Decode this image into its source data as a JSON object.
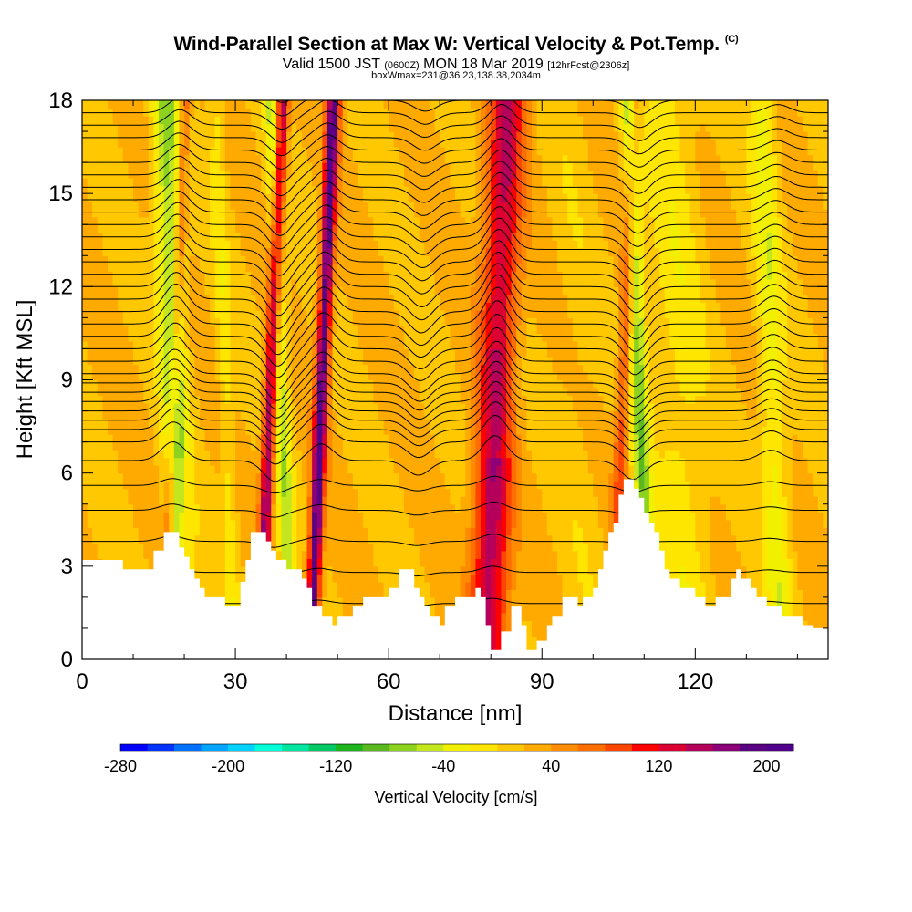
{
  "chart_data": {
    "type": "heatmap",
    "title": "Wind-Parallel Section at Max W: Vertical Velocity & Pot.Temp.",
    "title_tag": "(C)",
    "subtitle": {
      "valid": "Valid 1500 JST",
      "utc": "(0600Z)",
      "date": "MON 18 Mar 2019",
      "forecast": "[12hrFcst@2306z]"
    },
    "box_note": "boxWmax=231@36.23,138.38,2034m",
    "xlabel": "Distance [nm]",
    "ylabel": "Height [Kft MSL]",
    "xlim": [
      0,
      146
    ],
    "ylim": [
      0,
      18
    ],
    "xticks": [
      "0",
      "30",
      "60",
      "90",
      "120"
    ],
    "yticks": [
      "0",
      "3",
      "6",
      "9",
      "12",
      "15",
      "18"
    ],
    "colorbar": {
      "label": "Vertical Velocity [cm/s]",
      "tick_labels": [
        "-280",
        "-200",
        "-120",
        "-40",
        "40",
        "120",
        "200"
      ],
      "colors": [
        "#0000ff",
        "#0033ff",
        "#0070ff",
        "#00a5ff",
        "#00d2ff",
        "#00ffd7",
        "#00e5a0",
        "#00c864",
        "#1db41e",
        "#5ab91e",
        "#8cd21e",
        "#c3e61e",
        "#f0f000",
        "#ffe600",
        "#ffc800",
        "#ffaa00",
        "#ff8c00",
        "#ff6e00",
        "#ff4600",
        "#ff0000",
        "#dc0032",
        "#b4005a",
        "#8c0078",
        "#5a0082",
        "#50008c"
      ]
    },
    "velocity_columns": [
      {
        "x": 18,
        "w": 2.5,
        "v": -90
      },
      {
        "x": 37,
        "w": 1.2,
        "v": 150
      },
      {
        "x": 39,
        "w": 1.5,
        "v": -70
      },
      {
        "x": 47,
        "w": 1.3,
        "v": 180
      },
      {
        "x": 81,
        "w": 3.5,
        "v": 120
      },
      {
        "x": 109,
        "w": 1.6,
        "v": -90
      },
      {
        "x": 106,
        "w": 1.3,
        "v": 70
      },
      {
        "x": 117,
        "w": 5.0,
        "v": -30
      },
      {
        "x": 135,
        "w": 2.5,
        "v": -50
      },
      {
        "x": 28,
        "w": 1.5,
        "v": -30
      },
      {
        "x": 18,
        "w": 1.0,
        "v": 60
      },
      {
        "x": 97,
        "w": 4,
        "v": -10
      }
    ],
    "terrain_kft": [
      [
        0,
        3.2
      ],
      [
        8,
        3.2
      ],
      [
        8,
        2.9
      ],
      [
        14,
        2.9
      ],
      [
        14,
        3.5
      ],
      [
        16,
        3.5
      ],
      [
        16,
        4.1
      ],
      [
        19,
        4.1
      ],
      [
        19,
        3.6
      ],
      [
        20,
        3.6
      ],
      [
        20,
        3.3
      ],
      [
        21,
        3.3
      ],
      [
        21,
        2.9
      ],
      [
        22,
        2.9
      ],
      [
        22,
        2.6
      ],
      [
        23,
        2.6
      ],
      [
        23,
        2.3
      ],
      [
        24,
        2.3
      ],
      [
        24,
        2.0
      ],
      [
        28,
        2.0
      ],
      [
        28,
        1.7
      ],
      [
        31,
        1.7
      ],
      [
        31,
        2.5
      ],
      [
        32,
        2.5
      ],
      [
        32,
        3.2
      ],
      [
        33,
        3.2
      ],
      [
        33,
        4.1
      ],
      [
        36,
        4.1
      ],
      [
        36,
        3.8
      ],
      [
        37,
        3.8
      ],
      [
        37,
        3.5
      ],
      [
        38,
        3.5
      ],
      [
        38,
        3.2
      ],
      [
        40,
        3.2
      ],
      [
        40,
        2.9
      ],
      [
        43,
        2.9
      ],
      [
        43,
        2.6
      ],
      [
        44,
        2.6
      ],
      [
        44,
        2.3
      ],
      [
        45,
        2.3
      ],
      [
        45,
        1.7
      ],
      [
        47,
        1.7
      ],
      [
        47,
        1.4
      ],
      [
        49,
        1.4
      ],
      [
        49,
        1.1
      ],
      [
        50,
        1.1
      ],
      [
        50,
        1.4
      ],
      [
        53,
        1.4
      ],
      [
        53,
        1.7
      ],
      [
        55,
        1.7
      ],
      [
        55,
        2.0
      ],
      [
        60,
        2.0
      ],
      [
        60,
        2.3
      ],
      [
        62,
        2.3
      ],
      [
        62,
        2.9
      ],
      [
        65,
        2.9
      ],
      [
        65,
        2.3
      ],
      [
        66,
        2.3
      ],
      [
        66,
        2.0
      ],
      [
        67,
        2.0
      ],
      [
        67,
        1.7
      ],
      [
        68,
        1.7
      ],
      [
        68,
        1.4
      ],
      [
        70,
        1.4
      ],
      [
        70,
        1.1
      ],
      [
        71,
        1.1
      ],
      [
        71,
        1.7
      ],
      [
        73,
        1.7
      ],
      [
        73,
        2.0
      ],
      [
        77,
        2.0
      ],
      [
        77,
        2.3
      ],
      [
        78,
        2.3
      ],
      [
        78,
        2.0
      ],
      [
        79,
        2.0
      ],
      [
        79,
        1.1
      ],
      [
        80,
        1.1
      ],
      [
        80,
        0.3
      ],
      [
        82,
        0.3
      ],
      [
        82,
        0.9
      ],
      [
        84,
        0.9
      ],
      [
        84,
        1.7
      ],
      [
        86,
        1.7
      ],
      [
        86,
        1.1
      ],
      [
        87,
        1.1
      ],
      [
        87,
        0.3
      ],
      [
        89,
        0.3
      ],
      [
        89,
        0.6
      ],
      [
        91,
        0.6
      ],
      [
        91,
        1.1
      ],
      [
        92,
        1.1
      ],
      [
        92,
        1.4
      ],
      [
        94,
        1.4
      ],
      [
        94,
        2.0
      ],
      [
        97,
        2.0
      ],
      [
        97,
        1.7
      ],
      [
        98,
        1.7
      ],
      [
        98,
        2.0
      ],
      [
        100,
        2.0
      ],
      [
        100,
        2.3
      ],
      [
        101,
        2.3
      ],
      [
        101,
        2.9
      ],
      [
        102,
        2.9
      ],
      [
        102,
        3.5
      ],
      [
        103,
        3.5
      ],
      [
        103,
        4.1
      ],
      [
        104,
        4.1
      ],
      [
        104,
        4.4
      ],
      [
        105,
        4.4
      ],
      [
        105,
        5.3
      ],
      [
        106,
        5.3
      ],
      [
        106,
        5.8
      ],
      [
        108,
        5.8
      ],
      [
        108,
        5.5
      ],
      [
        109,
        5.5
      ],
      [
        109,
        5.2
      ],
      [
        110,
        5.2
      ],
      [
        110,
        4.7
      ],
      [
        111,
        4.7
      ],
      [
        111,
        4.4
      ],
      [
        112,
        4.4
      ],
      [
        112,
        4.1
      ],
      [
        113,
        4.1
      ],
      [
        113,
        3.5
      ],
      [
        114,
        3.5
      ],
      [
        114,
        2.9
      ],
      [
        115,
        2.9
      ],
      [
        115,
        2.6
      ],
      [
        117,
        2.6
      ],
      [
        117,
        2.3
      ],
      [
        120,
        2.3
      ],
      [
        120,
        2.0
      ],
      [
        122,
        2.0
      ],
      [
        122,
        1.7
      ],
      [
        124,
        1.7
      ],
      [
        124,
        2.0
      ],
      [
        127,
        2.0
      ],
      [
        127,
        2.6
      ],
      [
        128,
        2.6
      ],
      [
        128,
        2.9
      ],
      [
        129,
        2.9
      ],
      [
        129,
        2.6
      ],
      [
        131,
        2.6
      ],
      [
        131,
        2.3
      ],
      [
        132,
        2.3
      ],
      [
        132,
        2.0
      ],
      [
        134,
        2.0
      ],
      [
        134,
        1.7
      ],
      [
        137,
        1.7
      ],
      [
        137,
        1.4
      ],
      [
        141,
        1.4
      ],
      [
        141,
        1.1
      ],
      [
        143,
        1.1
      ],
      [
        143,
        1.0
      ],
      [
        146,
        1.0
      ]
    ],
    "isentropes": {
      "base_heights_kft": [
        1.8,
        2.8,
        3.8,
        4.8,
        5.6,
        6.4,
        7.0,
        7.4,
        7.7,
        8.0,
        8.3,
        8.6,
        8.9,
        9.2,
        9.6,
        10.0,
        10.4,
        10.8,
        11.2,
        11.6,
        12.0,
        12.4,
        12.8,
        13.2,
        13.6,
        14.0,
        14.4,
        14.8,
        15.2,
        15.6,
        16.0,
        16.4,
        16.8,
        17.2,
        17.6,
        18.0,
        18.4,
        18.8
      ],
      "wave_centers_nm": [
        18,
        38,
        47,
        66,
        81,
        108,
        135
      ],
      "wave_amplitudes_kft": [
        0.9,
        -1.0,
        0.8,
        -0.7,
        1.2,
        -0.9,
        0.5
      ]
    }
  }
}
